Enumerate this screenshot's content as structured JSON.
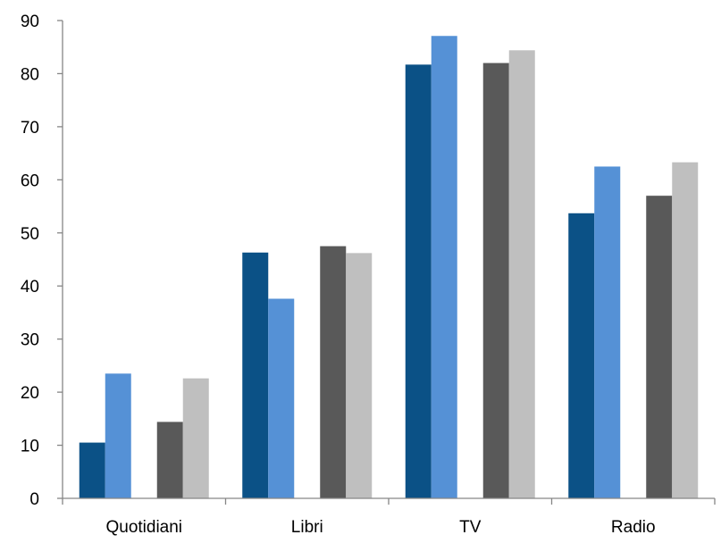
{
  "chart_data": {
    "type": "bar",
    "title": "",
    "xlabel": "",
    "ylabel": "",
    "ylim": [
      0,
      90
    ],
    "y_ticks": [
      0,
      10,
      20,
      30,
      40,
      50,
      60,
      70,
      80,
      90
    ],
    "grid": false,
    "legend": "none",
    "categories": [
      "Quotidiani",
      "Libri",
      "TV",
      "Radio"
    ],
    "series": [
      {
        "values": [
          10.5,
          46.3,
          81.7,
          53.7
        ],
        "color": "#0b5186"
      },
      {
        "values": [
          23.5,
          37.6,
          87.1,
          62.5
        ],
        "color": "#5591d6"
      },
      {
        "values": [
          14.4,
          47.5,
          82.0,
          57.0
        ],
        "color": "#595959"
      },
      {
        "values": [
          22.6,
          46.2,
          84.4,
          63.3
        ],
        "color": "#bfbfbf"
      }
    ],
    "axis_color": "#868686"
  }
}
